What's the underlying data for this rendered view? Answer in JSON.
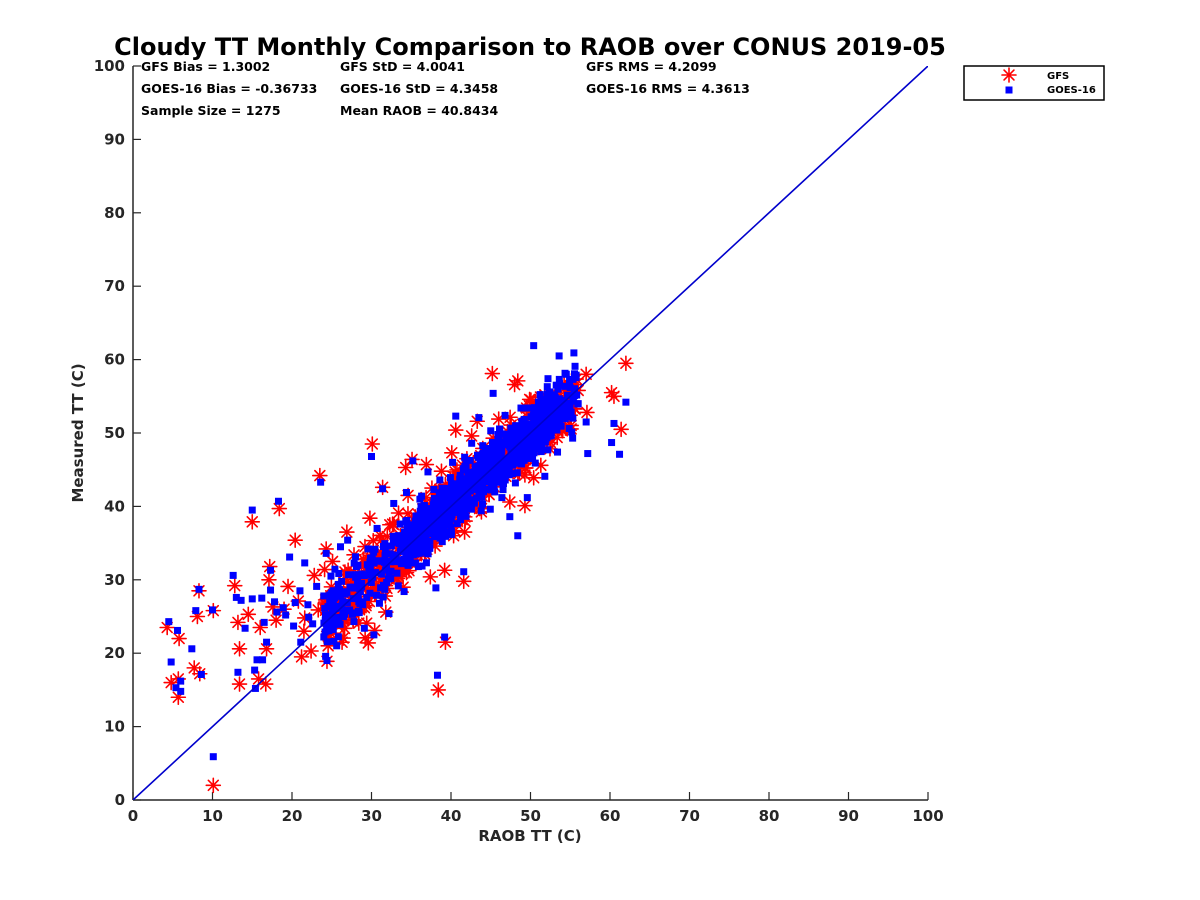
{
  "chart_data": {
    "type": "scatter",
    "title": "Cloudy TT Monthly Comparison to RAOB over CONUS 2019-05",
    "xlabel": "RAOB TT (C)",
    "ylabel": "Measured TT (C)",
    "xlim": [
      0,
      100
    ],
    "ylim": [
      0,
      100
    ],
    "xticks": [
      "0",
      "10",
      "20",
      "30",
      "40",
      "50",
      "60",
      "70",
      "80",
      "90",
      "100"
    ],
    "yticks": [
      "0",
      "10",
      "20",
      "30",
      "40",
      "50",
      "60",
      "70",
      "80",
      "90",
      "100"
    ],
    "grid": false,
    "legend_position": "outside-top-right",
    "reference_line": {
      "x": [
        0,
        100
      ],
      "y": [
        0,
        100
      ],
      "color": "#0000cc"
    },
    "stats": [
      [
        "GFS Bias = 1.3002",
        "GFS StD = 4.0041",
        "GFS RMS = 4.2099"
      ],
      [
        "GOES-16 Bias = -0.36733",
        "GOES-16 StD = 4.3458",
        "GOES-16 RMS = 4.3613"
      ],
      [
        "Sample Size = 1275",
        "Mean RAOB = 40.8434",
        ""
      ]
    ],
    "series": [
      {
        "name": "GFS",
        "marker": "asterisk",
        "color": "#ff0000",
        "points": [
          [
            4.3,
            23.5
          ],
          [
            4.8,
            16
          ],
          [
            5.7,
            14
          ],
          [
            5.7,
            16.5
          ],
          [
            5.8,
            22
          ],
          [
            7.7,
            18
          ],
          [
            8.1,
            25
          ],
          [
            8.4,
            17.2
          ],
          [
            8.3,
            28.5
          ],
          [
            10.1,
            25.8
          ],
          [
            10.1,
            2
          ],
          [
            12.8,
            29.2
          ],
          [
            13.2,
            24.2
          ],
          [
            13.4,
            15.8
          ],
          [
            13.4,
            20.6
          ],
          [
            14.5,
            25.3
          ],
          [
            15,
            37.9
          ],
          [
            15.8,
            16.5
          ],
          [
            16,
            23.5
          ],
          [
            16.7,
            15.8
          ],
          [
            16.8,
            20.6
          ],
          [
            17.1,
            30
          ],
          [
            17.2,
            31.8
          ],
          [
            17.6,
            26.3
          ],
          [
            18,
            24.5
          ],
          [
            18.4,
            39.7
          ],
          [
            19,
            26
          ],
          [
            19.5,
            29.1
          ],
          [
            20.4,
            35.4
          ],
          [
            20.8,
            27.1
          ],
          [
            21.2,
            19.5
          ],
          [
            21.5,
            23
          ],
          [
            21.6,
            24.8
          ],
          [
            22.4,
            20.3
          ],
          [
            22.8,
            30.6
          ],
          [
            23.3,
            25.9
          ],
          [
            23.5,
            44.2
          ],
          [
            24.1,
            31.4
          ],
          [
            24.3,
            34.2
          ],
          [
            24.4,
            18.9
          ],
          [
            25.1,
            32.5
          ],
          [
            25.6,
            25.1
          ],
          [
            26.1,
            24.4
          ],
          [
            26.3,
            21.5
          ],
          [
            26.9,
            36.5
          ],
          [
            27.5,
            25.9
          ],
          [
            27.8,
            33.4
          ],
          [
            28.2,
            27.7
          ],
          [
            28.4,
            24.1
          ],
          [
            29.2,
            22.1
          ],
          [
            29.6,
            21.4
          ],
          [
            29.8,
            38.4
          ],
          [
            30.1,
            48.5
          ],
          [
            30.4,
            23.1
          ],
          [
            31.1,
            29.8
          ],
          [
            31.2,
            35.4
          ],
          [
            31.4,
            42.6
          ],
          [
            31.8,
            25.6
          ],
          [
            32.3,
            37.5
          ],
          [
            32.5,
            31.8
          ],
          [
            33.1,
            30.2
          ],
          [
            33.4,
            39.1
          ],
          [
            34,
            34.2
          ],
          [
            34.3,
            45.3
          ],
          [
            34.6,
            41.5
          ],
          [
            35.1,
            46.4
          ],
          [
            35.4,
            32.7
          ],
          [
            35.6,
            36.9
          ],
          [
            36.3,
            38.3
          ],
          [
            36.5,
            35.1
          ],
          [
            36.9,
            45.7
          ],
          [
            37.4,
            30.4
          ],
          [
            37.6,
            42.5
          ],
          [
            38,
            34.6
          ],
          [
            38.3,
            41.8
          ],
          [
            38.4,
            15
          ],
          [
            38.8,
            44.8
          ],
          [
            39,
            37.2
          ],
          [
            39.2,
            31.3
          ],
          [
            39.3,
            21.5
          ],
          [
            39.8,
            39.5
          ],
          [
            40.1,
            47.3
          ],
          [
            40.3,
            42.9
          ],
          [
            40.5,
            36.7
          ],
          [
            40.6,
            50.4
          ],
          [
            41,
            44
          ],
          [
            41.4,
            38.2
          ],
          [
            41.6,
            29.8
          ],
          [
            42,
            46.5
          ],
          [
            42.2,
            41.2
          ],
          [
            42.6,
            49.6
          ],
          [
            43,
            43.8
          ],
          [
            43.3,
            51.6
          ],
          [
            43.6,
            39.7
          ],
          [
            44,
            47.9
          ],
          [
            44.3,
            45.2
          ],
          [
            44.8,
            41.6
          ],
          [
            45.2,
            58.1
          ],
          [
            45.3,
            49.3
          ],
          [
            45.6,
            43.4
          ],
          [
            46,
            51.9
          ],
          [
            46.3,
            46.7
          ],
          [
            46.9,
            44.1
          ],
          [
            47.1,
            50.2
          ],
          [
            47.4,
            40.6
          ],
          [
            48,
            56.6
          ],
          [
            48.2,
            47.8
          ],
          [
            48.4,
            57.1
          ],
          [
            48.6,
            44.5
          ],
          [
            49,
            51.2
          ],
          [
            49.3,
            40.1
          ],
          [
            49.5,
            53.4
          ],
          [
            50,
            48.1
          ],
          [
            50.4,
            43.9
          ],
          [
            50.6,
            54.3
          ],
          [
            51,
            50.8
          ],
          [
            51.3,
            45.6
          ],
          [
            51.8,
            55.2
          ],
          [
            52,
            52.5
          ],
          [
            52.5,
            48.7
          ],
          [
            53,
            54.9
          ],
          [
            53.5,
            51.8
          ],
          [
            54,
            50.3
          ],
          [
            54.4,
            56.2
          ],
          [
            55,
            53.1
          ],
          [
            56,
            55.8
          ],
          [
            57,
            58
          ],
          [
            57.1,
            52.8
          ],
          [
            60.2,
            55.5
          ],
          [
            60.5,
            55
          ],
          [
            61.4,
            50.5
          ],
          [
            62,
            59.5
          ]
        ]
      },
      {
        "name": "GOES-16",
        "marker": "square",
        "color": "#0000ff",
        "points": [
          [
            4.5,
            24.3
          ],
          [
            4.8,
            18.8
          ],
          [
            5.4,
            15.3
          ],
          [
            5.6,
            23.1
          ],
          [
            6,
            16.2
          ],
          [
            6,
            14.8
          ],
          [
            7.4,
            20.6
          ],
          [
            7.9,
            25.8
          ],
          [
            8.3,
            28.7
          ],
          [
            8.6,
            17.1
          ],
          [
            10,
            25.9
          ],
          [
            10.1,
            5.9
          ],
          [
            12.6,
            30.6
          ],
          [
            13,
            27.6
          ],
          [
            13.2,
            17.4
          ],
          [
            13.6,
            27.2
          ],
          [
            14.1,
            23.4
          ],
          [
            15,
            27.4
          ],
          [
            15,
            39.5
          ],
          [
            15.3,
            17.7
          ],
          [
            15.4,
            15.2
          ],
          [
            15.6,
            19.1
          ],
          [
            16.2,
            27.5
          ],
          [
            16.3,
            19.1
          ],
          [
            16.5,
            24.2
          ],
          [
            16.8,
            21.5
          ],
          [
            17.3,
            28.6
          ],
          [
            17.3,
            31.3
          ],
          [
            17.8,
            27
          ],
          [
            18.1,
            25.6
          ],
          [
            18.3,
            40.7
          ],
          [
            18.9,
            26.2
          ],
          [
            19.2,
            25.2
          ],
          [
            19.7,
            33.1
          ],
          [
            20.2,
            23.7
          ],
          [
            20.4,
            26.9
          ],
          [
            21,
            28.5
          ],
          [
            21.1,
            21.5
          ],
          [
            21.6,
            32.3
          ],
          [
            22,
            26.6
          ],
          [
            22.1,
            24.9
          ],
          [
            22.6,
            24
          ],
          [
            23.1,
            29.1
          ],
          [
            23.6,
            43.3
          ],
          [
            24,
            27.8
          ],
          [
            24.3,
            33.6
          ],
          [
            24.4,
            19
          ],
          [
            24.9,
            30.5
          ],
          [
            25.2,
            27
          ],
          [
            25.6,
            26.2
          ],
          [
            26.1,
            34.5
          ],
          [
            26.4,
            25.4
          ],
          [
            27,
            35.4
          ],
          [
            27.3,
            29
          ],
          [
            27.6,
            25.5
          ],
          [
            28.1,
            31.8
          ],
          [
            28.5,
            28.8
          ],
          [
            28.9,
            26.6
          ],
          [
            29.1,
            23.4
          ],
          [
            29.4,
            27.6
          ],
          [
            29.8,
            32.4
          ],
          [
            30,
            46.8
          ],
          [
            30.3,
            22.5
          ],
          [
            30.7,
            37
          ],
          [
            31,
            26.8
          ],
          [
            31.4,
            42.4
          ],
          [
            31.7,
            33.3
          ],
          [
            32.2,
            25.4
          ],
          [
            32.5,
            34.6
          ],
          [
            32.8,
            40.4
          ],
          [
            33.2,
            30.9
          ],
          [
            33.6,
            37.6
          ],
          [
            34.1,
            28.4
          ],
          [
            34.4,
            41.9
          ],
          [
            34.8,
            35.3
          ],
          [
            35.2,
            46.2
          ],
          [
            35.6,
            38.7
          ],
          [
            35.9,
            31.8
          ],
          [
            36.3,
            41.4
          ],
          [
            36.7,
            33.9
          ],
          [
            37.1,
            44.7
          ],
          [
            37.5,
            36.7
          ],
          [
            37.8,
            39.8
          ],
          [
            38.1,
            28.9
          ],
          [
            38.3,
            17
          ],
          [
            38.6,
            43.6
          ],
          [
            38.9,
            35.2
          ],
          [
            39.2,
            22.2
          ],
          [
            39.5,
            40.9
          ],
          [
            39.8,
            37.5
          ],
          [
            40.2,
            46
          ],
          [
            40.6,
            52.3
          ],
          [
            40.8,
            42.2
          ],
          [
            41.2,
            38.2
          ],
          [
            41.6,
            31.1
          ],
          [
            41.9,
            45.3
          ],
          [
            42.2,
            40.5
          ],
          [
            42.6,
            48.6
          ],
          [
            43,
            43.2
          ],
          [
            43.5,
            52.1
          ],
          [
            43.8,
            39.4
          ],
          [
            44.2,
            46.9
          ],
          [
            44.6,
            42.3
          ],
          [
            45,
            50.3
          ],
          [
            45.3,
            55.4
          ],
          [
            45.6,
            44.4
          ],
          [
            46,
            48.2
          ],
          [
            46.4,
            41.2
          ],
          [
            46.8,
            52.4
          ],
          [
            47.1,
            45.9
          ],
          [
            47.4,
            38.6
          ],
          [
            47.8,
            49.6
          ],
          [
            48.1,
            43.2
          ],
          [
            48.4,
            36
          ],
          [
            48.8,
            53.4
          ],
          [
            49.2,
            47.2
          ],
          [
            49.6,
            41.2
          ],
          [
            50,
            51.2
          ],
          [
            50.4,
            61.9
          ],
          [
            50.6,
            45.9
          ],
          [
            51,
            54.2
          ],
          [
            51.4,
            48.3
          ],
          [
            51.8,
            44.1
          ],
          [
            52.2,
            57.4
          ],
          [
            52.6,
            50.6
          ],
          [
            53,
            55.2
          ],
          [
            53.4,
            47.4
          ],
          [
            53.6,
            60.5
          ],
          [
            54,
            52.6
          ],
          [
            54.5,
            58
          ],
          [
            55.3,
            49.3
          ],
          [
            56,
            54
          ],
          [
            57,
            51.5
          ],
          [
            57.2,
            47.2
          ],
          [
            60.2,
            48.7
          ],
          [
            60.5,
            51.3
          ],
          [
            61.2,
            47.1
          ],
          [
            62,
            54.2
          ]
        ]
      }
    ]
  }
}
